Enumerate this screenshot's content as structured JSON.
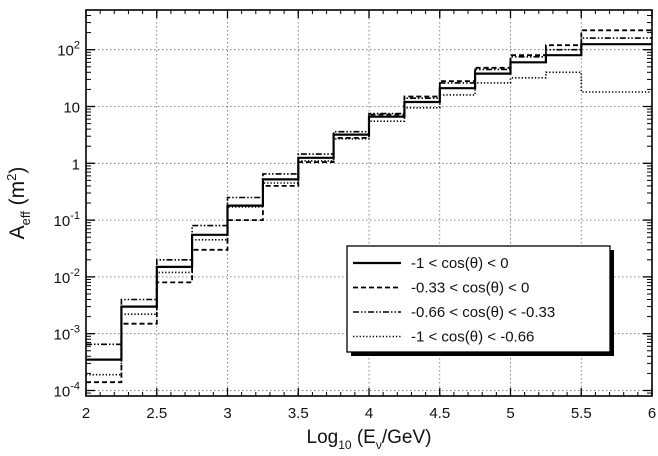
{
  "chart_data": {
    "type": "line",
    "step": true,
    "xlabel": {
      "base": "Log",
      "sub1": "10",
      "mid": " (E",
      "sub2": "ν",
      "end": "/GeV)"
    },
    "ylabel": {
      "base": "A",
      "sub": "eff",
      "unit_open": "  (m",
      "sup": "2",
      "unit_close": ")"
    },
    "xlim": [
      2,
      6
    ],
    "ylim": [
      8e-05,
      500
    ],
    "yscale": "log",
    "grid": true,
    "legend_position": "lower-right",
    "x_ticks": [
      {
        "value": 2,
        "label": "2"
      },
      {
        "value": 2.5,
        "label": "2.5"
      },
      {
        "value": 3,
        "label": "3"
      },
      {
        "value": 3.5,
        "label": "3.5"
      },
      {
        "value": 4,
        "label": "4"
      },
      {
        "value": 4.5,
        "label": "4.5"
      },
      {
        "value": 5,
        "label": "5"
      },
      {
        "value": 5.5,
        "label": "5.5"
      },
      {
        "value": 6,
        "label": "6"
      }
    ],
    "y_ticks": [
      {
        "value": 0.0001,
        "base": "10",
        "exp": "-4"
      },
      {
        "value": 0.001,
        "base": "10",
        "exp": "-3"
      },
      {
        "value": 0.01,
        "base": "10",
        "exp": "-2"
      },
      {
        "value": 0.1,
        "base": "10",
        "exp": "-1"
      },
      {
        "value": 1,
        "base": "1",
        "exp": ""
      },
      {
        "value": 10,
        "base": "10",
        "exp": ""
      },
      {
        "value": 100,
        "base": "10",
        "exp": "2"
      }
    ],
    "bin_edges": [
      2.0,
      2.25,
      2.5,
      2.75,
      3.0,
      3.25,
      3.5,
      3.75,
      4.0,
      4.25,
      4.5,
      4.75,
      5.0,
      5.25,
      5.5,
      6.0
    ],
    "series": [
      {
        "name": "-1 < cos(θ) < 0",
        "style": "solid",
        "values": [
          0.00035,
          0.003,
          0.015,
          0.055,
          0.18,
          0.52,
          1.25,
          3.2,
          6.6,
          12,
          21,
          38,
          60,
          80,
          125
        ]
      },
      {
        "name": "-0.33 < cos(θ) < 0",
        "style": "dashed",
        "values": [
          0.00014,
          0.0015,
          0.008,
          0.03,
          0.1,
          0.4,
          1.05,
          2.8,
          7.2,
          15,
          28,
          48,
          80,
          120,
          220
        ]
      },
      {
        "name": "-0.66 < cos(θ) < -0.33",
        "style": "dashdot",
        "values": [
          0.00065,
          0.004,
          0.02,
          0.08,
          0.25,
          0.65,
          1.45,
          3.6,
          7.5,
          14,
          26,
          45,
          75,
          100,
          160
        ]
      },
      {
        "name": "-1 < cos(θ) < -0.66",
        "style": "dotted",
        "values": [
          0.00019,
          0.0022,
          0.012,
          0.045,
          0.17,
          0.45,
          1.1,
          2.7,
          5.5,
          9.5,
          16,
          26,
          32,
          40,
          18
        ]
      }
    ]
  }
}
